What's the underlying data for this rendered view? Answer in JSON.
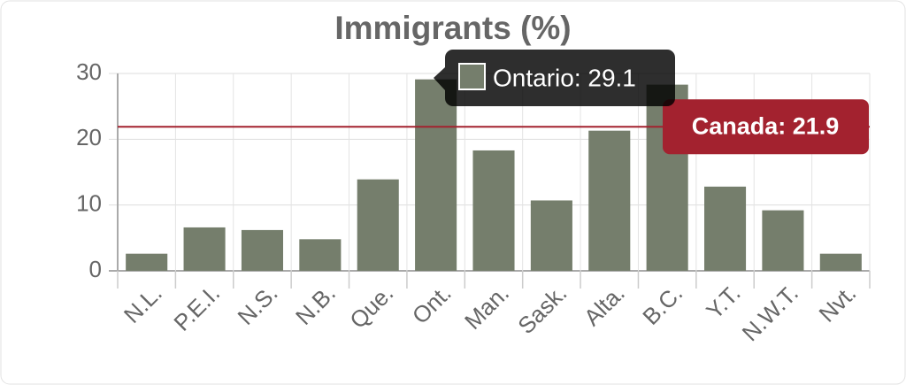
{
  "chart_data": {
    "type": "bar",
    "title": "Immigrants (%)",
    "categories": [
      "N.L.",
      "P.E.I.",
      "N.S.",
      "N.B.",
      "Que.",
      "Ont.",
      "Man.",
      "Sask.",
      "Alta.",
      "B.C.",
      "Y.T.",
      "N.W.T.",
      "Nvt."
    ],
    "values": [
      2.6,
      6.6,
      6.2,
      4.8,
      13.9,
      29.1,
      18.3,
      10.7,
      21.3,
      28.3,
      12.8,
      9.2,
      2.6
    ],
    "color": "#757e6c",
    "ylim": [
      0,
      30
    ],
    "yticks": [
      0,
      10,
      20,
      30
    ],
    "grid": true,
    "reference_line": {
      "value": 21.9,
      "label": "Canada: 21.9",
      "color": "#a3222f"
    },
    "tooltip": {
      "label": "Ontario: 29.1"
    }
  }
}
